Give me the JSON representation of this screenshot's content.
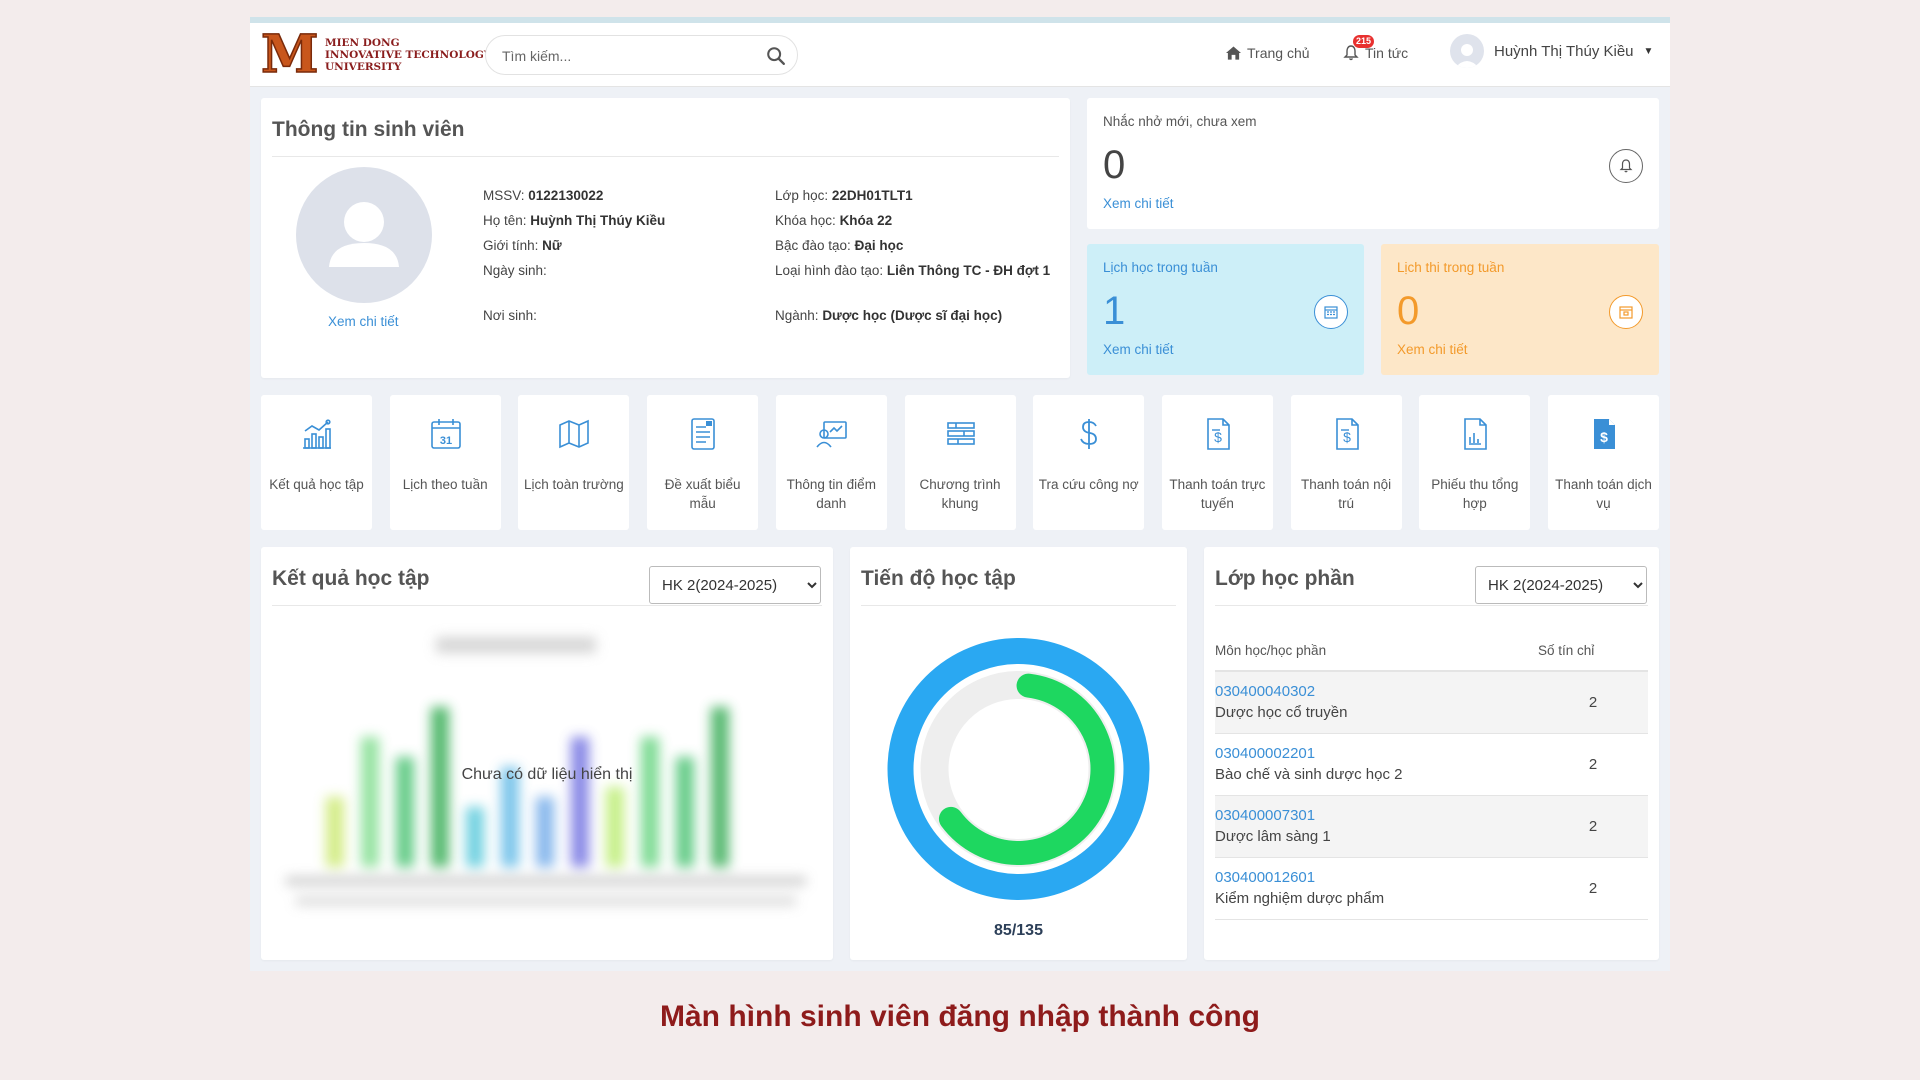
{
  "header": {
    "logo_letter": "M",
    "logo_text": "MIEN DONG\nINNOVATIVE TECHNOLOGY\nUNIVERSITY",
    "search_placeholder": "Tìm kiếm...",
    "nav_home": "Trang chủ",
    "nav_news": "Tin tức",
    "news_badge": "215",
    "user_name": "Huỳnh Thị Thúy Kiều"
  },
  "student": {
    "title": "Thông tin sinh viên",
    "view_detail": "Xem chi tiết",
    "mssv_label": "MSSV:",
    "mssv": "0122130022",
    "name_label": "Họ tên:",
    "name": "Huỳnh Thị Thúy Kiều",
    "gender_label": "Giới tính:",
    "gender": "Nữ",
    "dob_label": "Ngày sinh:",
    "dob": "",
    "pob_label": "Nơi sinh:",
    "pob": "",
    "class_label": "Lớp học:",
    "class": "22DH01TLT1",
    "course_label": "Khóa học:",
    "course": "Khóa 22",
    "level_label": "Bậc đào tạo:",
    "level": "Đại học",
    "type_label": "Loại hình đào tạo:",
    "type": "Liên Thông TC - ĐH đợt 1",
    "major_label": "Ngành:",
    "major": "Dược học (Dược sĩ đại học)"
  },
  "stats": {
    "remind": {
      "label": "Nhắc nhở mới, chưa xem",
      "value": "0",
      "link": "Xem chi tiết",
      "icon": "bell-icon"
    },
    "week": {
      "label": "Lịch học trong tuần",
      "value": "1",
      "link": "Xem chi tiết",
      "icon": "calendar-icon",
      "color": "#3a8fd6"
    },
    "exam": {
      "label": "Lịch thi trong tuần",
      "value": "0",
      "link": "Xem chi tiết",
      "icon": "calendar-check-icon",
      "color": "#f39a2b"
    }
  },
  "quick_actions": [
    {
      "label": "Kết quả học tập",
      "icon": "chart-icon"
    },
    {
      "label": "Lịch theo tuần",
      "icon": "calendar-31-icon"
    },
    {
      "label": "Lịch toàn trường",
      "icon": "map-icon"
    },
    {
      "label": "Đề xuất biểu mẫu",
      "icon": "form-icon"
    },
    {
      "label": "Thông tin điểm danh",
      "icon": "attendance-icon"
    },
    {
      "label": "Chương trình khung",
      "icon": "list-icon"
    },
    {
      "label": "Tra cứu công nợ",
      "icon": "dollar-icon"
    },
    {
      "label": "Thanh toán trực tuyến",
      "icon": "invoice-icon"
    },
    {
      "label": "Thanh toán nội trú",
      "icon": "invoice-icon"
    },
    {
      "label": "Phiếu thu tổng hợp",
      "icon": "receipt-chart-icon"
    },
    {
      "label": "Thanh toán dịch vụ",
      "icon": "invoice-filled-icon"
    }
  ],
  "results": {
    "title": "Kết quả học tập",
    "semester": "HK 2(2024-2025)",
    "no_data": "Chưa có dữ liệu hiển thị"
  },
  "progress": {
    "title": "Tiến độ học tập",
    "done": 85,
    "total": 135,
    "text": "85/135",
    "outer_color": "#2aa8f2",
    "inner_color": "#1ed760"
  },
  "classes": {
    "title": "Lớp học phần",
    "semester": "HK 2(2024-2025)",
    "col_subject": "Môn học/học phần",
    "col_credits": "Số tín chỉ",
    "rows": [
      {
        "code": "030400040302",
        "name": "Dược học cổ truyền",
        "credits": "2"
      },
      {
        "code": "030400002201",
        "name": "Bào chế và sinh dược học 2",
        "credits": "2"
      },
      {
        "code": "030400007301",
        "name": "Dược lâm sàng 1",
        "credits": "2"
      },
      {
        "code": "030400012601",
        "name": "Kiểm nghiệm dược phẩm",
        "credits": "2"
      }
    ]
  },
  "caption": "Màn hình sinh viên đăng nhập thành công"
}
